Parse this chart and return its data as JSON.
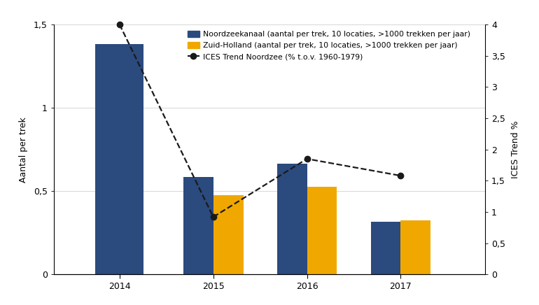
{
  "years": [
    2014,
    2015,
    2016,
    2017
  ],
  "noordzeekanaal": [
    1.38,
    0.585,
    0.665,
    0.315
  ],
  "zuidholland": [
    null,
    0.475,
    0.525,
    0.325
  ],
  "ices_trend": [
    4.0,
    0.92,
    1.85,
    1.58
  ],
  "bar_width": 0.32,
  "color_noord": "#2b4a7e",
  "color_zh": "#f0a800",
  "color_ices": "#1a1a1a",
  "ylabel_left": "Aantal per trek",
  "ylabel_right": "ICES Trend %",
  "ylim_left": [
    0,
    1.5
  ],
  "ylim_right": [
    0,
    4.0
  ],
  "yticks_left": [
    0,
    0.5,
    1.0,
    1.5
  ],
  "yticks_right": [
    0,
    0.5,
    1.0,
    1.5,
    2.0,
    2.5,
    3.0,
    3.5,
    4.0
  ],
  "legend_noord": "Noordzeekanaal (aantal per trek, 10 locaties, >1000 trekken per jaar)",
  "legend_zh": "Zuid-Holland (aantal per trek, 10 locaties, >1000 trekken per jaar)",
  "legend_ices": "ICES Trend Noordzee (% t.o.v. 1960-1979)",
  "background_color": "#ffffff",
  "grid_color": "#d0d0d0",
  "xlim": [
    2013.3,
    2017.9
  ],
  "figsize": [
    7.7,
    4.36
  ],
  "dpi": 100
}
